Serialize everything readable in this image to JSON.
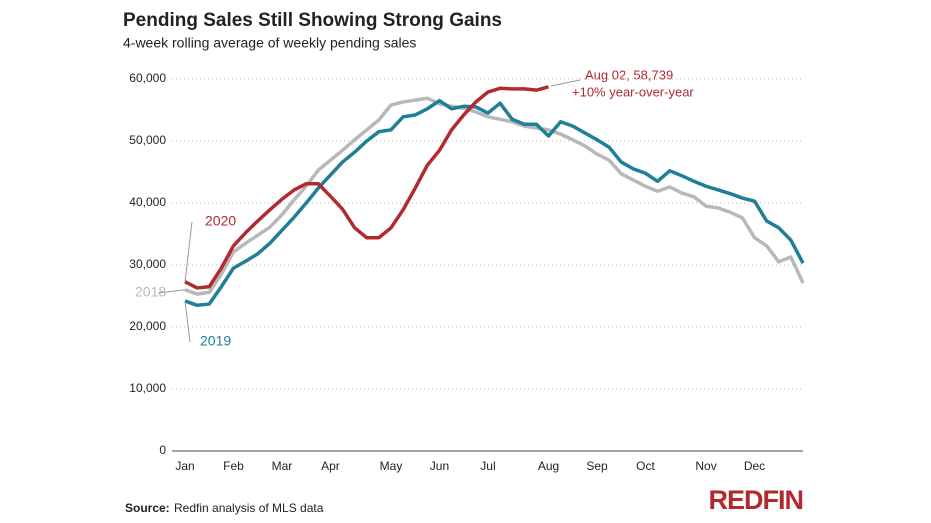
{
  "chart_data": {
    "type": "line",
    "title": "Pending Sales Still Showing Strong Gains",
    "subtitle": "4-week rolling average of weekly pending sales",
    "categories": [
      "Jan",
      null,
      null,
      null,
      "Feb",
      null,
      null,
      null,
      "Mar",
      null,
      null,
      null,
      "Apr",
      null,
      null,
      null,
      null,
      "May",
      null,
      null,
      null,
      "Jun",
      null,
      null,
      null,
      "Jul",
      null,
      null,
      null,
      null,
      "Aug",
      null,
      null,
      null,
      "Sep",
      null,
      null,
      null,
      "Oct",
      null,
      null,
      null,
      null,
      "Nov",
      null,
      null,
      null,
      "Dec",
      null,
      null,
      null,
      null
    ],
    "series": [
      {
        "name": "2018",
        "color": "#b8b8b8",
        "values": [
          26.0,
          25.3,
          25.6,
          28.5,
          32.1,
          33.5,
          34.8,
          36.1,
          38.1,
          40.5,
          42.7,
          45.3,
          46.9,
          48.5,
          50.2,
          51.8,
          53.4,
          55.8,
          56.3,
          56.6,
          56.9,
          56.0,
          55.6,
          55.3,
          54.7,
          53.9,
          53.5,
          53.1,
          52.4,
          52.1,
          51.8,
          51.1,
          50.2,
          49.2,
          47.9,
          46.9,
          44.7,
          43.7,
          42.7,
          41.9,
          42.6,
          41.6,
          41.0,
          39.5,
          39.2,
          38.5,
          37.6,
          34.4,
          33.1,
          30.5,
          31.3,
          27.1
        ]
      },
      {
        "name": "2019",
        "color": "#1f7f97",
        "values": [
          24.2,
          23.5,
          23.7,
          26.5,
          29.5,
          30.6,
          31.8,
          33.5,
          35.6,
          37.7,
          40.0,
          42.4,
          44.5,
          46.6,
          48.2,
          50.0,
          51.5,
          51.8,
          53.9,
          54.2,
          55.2,
          56.5,
          55.2,
          55.6,
          55.5,
          54.5,
          56.1,
          53.5,
          52.7,
          52.7,
          50.8,
          53.1,
          52.4,
          51.3,
          50.2,
          49.0,
          46.6,
          45.5,
          44.8,
          43.5,
          45.2,
          44.4,
          43.5,
          42.7,
          42.1,
          41.5,
          40.8,
          40.3,
          37.1,
          36.0,
          34.0,
          30.3
        ]
      },
      {
        "name": "2020",
        "color": "#b22a2e",
        "values": [
          27.3,
          26.3,
          26.5,
          29.5,
          33.1,
          35.2,
          37.1,
          38.9,
          40.6,
          42.1,
          43.1,
          43.1,
          41.1,
          39.0,
          36.0,
          34.4,
          34.4,
          36.0,
          38.9,
          42.4,
          46.1,
          48.5,
          51.8,
          54.2,
          56.3,
          57.9,
          58.5,
          58.4,
          58.4,
          58.2,
          58.739,
          null,
          null,
          null,
          null,
          null,
          null,
          null,
          null,
          null,
          null,
          null,
          null,
          null,
          null,
          null,
          null,
          null,
          null,
          null,
          null,
          null
        ]
      }
    ],
    "ylim": [
      0,
      60
    ],
    "yticks": [
      0,
      {
        "value": 10,
        "label": "10,000"
      },
      {
        "value": 20,
        "label": "20,000"
      },
      {
        "value": 30,
        "label": "30,000"
      },
      {
        "value": 40,
        "label": "40,000"
      },
      {
        "value": 50,
        "label": "50,000"
      },
      {
        "value": 60,
        "label": "60,000"
      }
    ],
    "grid": true,
    "annotations": [
      "Aug 02, 58,739",
      "+10% year-over-year"
    ],
    "source_label": "Source:",
    "source": "Redfin analysis of MLS data",
    "logo": "REDFIN"
  }
}
